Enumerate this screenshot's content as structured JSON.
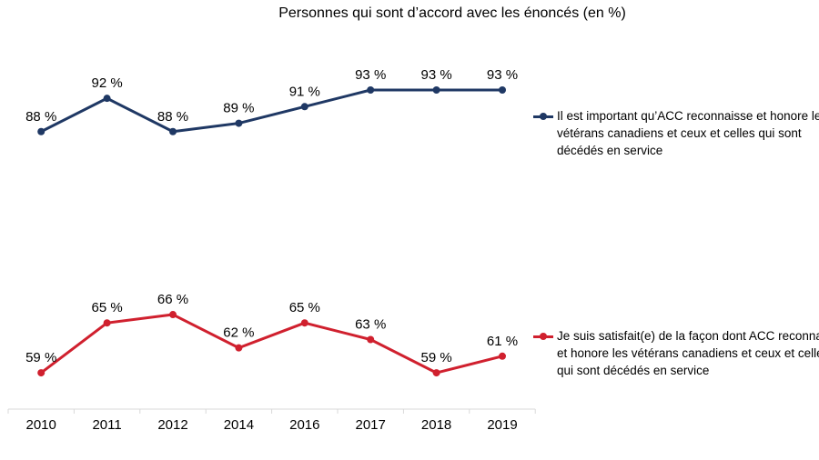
{
  "chart_data": {
    "type": "line",
    "title": "Personnes qui sont d’accord avec les énoncés (en %)",
    "categories": [
      "2010",
      "2011",
      "2012",
      "2014",
      "2016",
      "2017",
      "2018",
      "2019"
    ],
    "series": [
      {
        "name": "Il est important qu’ACC reconnaisse et honore les vétérans canadiens et ceux et celles qui sont décédés en service",
        "values": [
          88,
          92,
          88,
          89,
          91,
          93,
          93,
          93
        ],
        "labels": [
          "88 %",
          "92 %",
          "88 %",
          "89 %",
          "91 %",
          "93 %",
          "93 %",
          "93 %"
        ],
        "color": "#1f3864"
      },
      {
        "name": "Je suis satisfait(e) de la façon dont ACC reconnaît et honore les vétérans canadiens et ceux et celles qui sont décédés en service",
        "values": [
          59,
          65,
          66,
          62,
          65,
          63,
          59,
          61
        ],
        "labels": [
          "59 %",
          "65 %",
          "66 %",
          "62 %",
          "65 %",
          "63 %",
          "59 %",
          "61 %"
        ],
        "color": "#d0202e"
      }
    ],
    "grid": false,
    "legend": "right"
  }
}
